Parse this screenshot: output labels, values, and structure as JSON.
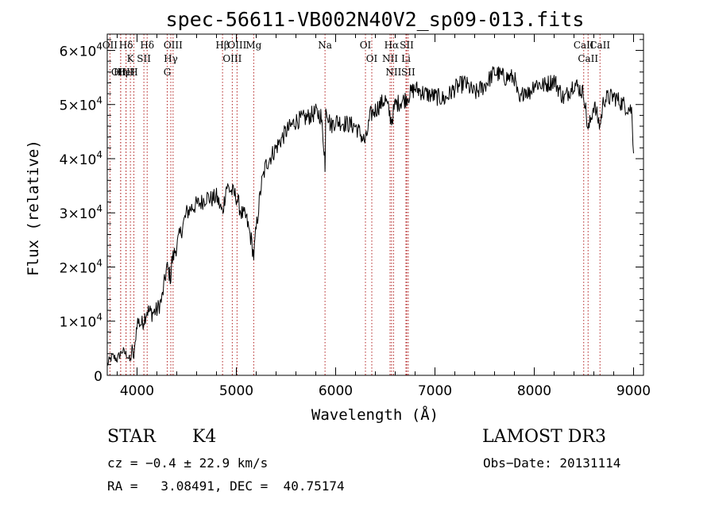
{
  "chart_data": {
    "type": "line",
    "title": "spec-56611-VB002N40V2_sp09-013.fits",
    "xlabel": "Wavelength (Å)",
    "ylabel": "Flux (relative)",
    "xlim": [
      3700,
      9100
    ],
    "ylim": [
      0,
      63000
    ],
    "xticks": [
      4000,
      5000,
      6000,
      7000,
      8000,
      9000
    ],
    "xtick_labels": [
      "4000",
      "5000",
      "6000",
      "7000",
      "8000",
      "9000"
    ],
    "yticks": [
      0,
      10000,
      20000,
      30000,
      40000,
      50000,
      60000
    ],
    "ytick_mantissas": [
      "0",
      "1×10",
      "2×10",
      "3×10",
      "4×10",
      "5×10",
      "6×10"
    ],
    "ytick_exponents": [
      "",
      "4",
      "4",
      "4",
      "4",
      "4",
      "4"
    ],
    "series": [
      {
        "name": "flux",
        "x": [
          3700,
          3750,
          3800,
          3850,
          3900,
          3933,
          3950,
          3968,
          4000,
          4050,
          4101,
          4150,
          4200,
          4250,
          4300,
          4340,
          4350,
          4400,
          4450,
          4500,
          4550,
          4600,
          4650,
          4700,
          4750,
          4800,
          4861,
          4900,
          4950,
          5000,
          5050,
          5100,
          5150,
          5175,
          5200,
          5250,
          5300,
          5400,
          5500,
          5600,
          5700,
          5800,
          5850,
          5890,
          5893,
          5900,
          5950,
          6000,
          6100,
          6200,
          6300,
          6350,
          6400,
          6500,
          6563,
          6600,
          6700,
          6800,
          6900,
          7000,
          7100,
          7200,
          7300,
          7400,
          7500,
          7600,
          7700,
          7800,
          7850,
          7900,
          7950,
          8000,
          8100,
          8200,
          8300,
          8400,
          8500,
          8542,
          8600,
          8662,
          8700,
          8800,
          8900,
          8980,
          9000
        ],
        "y": [
          2000,
          3500,
          3000,
          4500,
          3800,
          2500,
          5000,
          3000,
          10000,
          9500,
          12000,
          11500,
          12000,
          14000,
          20000,
          18000,
          21000,
          24000,
          27000,
          30000,
          31000,
          31500,
          32000,
          33000,
          32500,
          33000,
          30000,
          35000,
          34000,
          33000,
          30000,
          29000,
          25000,
          22000,
          27000,
          35000,
          39000,
          42000,
          45000,
          47000,
          47500,
          48500,
          48000,
          41000,
          37000,
          50000,
          46000,
          47000,
          46500,
          46000,
          43000,
          48000,
          49000,
          51000,
          47000,
          50000,
          51000,
          53000,
          52000,
          51500,
          51000,
          53000,
          54000,
          52000,
          53500,
          56000,
          55000,
          55000,
          50000,
          53000,
          52000,
          54000,
          53500,
          54500,
          51000,
          54000,
          52000,
          45000,
          50000,
          46000,
          51000,
          51500,
          50000,
          49000,
          41000
        ]
      }
    ],
    "lines": [
      {
        "label": "Hδ",
        "wl": 3889
      },
      {
        "label": "K",
        "wl": 3933
      },
      {
        "label": "Hδ",
        "wl": 4102
      },
      {
        "label": "OII",
        "wl": 3727
      },
      {
        "label": "HeI",
        "wl": 3889
      },
      {
        "label": "SII",
        "wl": 4069
      },
      {
        "label": "OIII",
        "wl": 3835
      },
      {
        "label": "Hη",
        "wl": 3835
      },
      {
        "label": "H",
        "wl": 3968
      },
      {
        "label": "OIII",
        "wl": 4363
      },
      {
        "label": "Hγ",
        "wl": 4340
      },
      {
        "label": "G",
        "wl": 4304
      },
      {
        "label": "Hβ",
        "wl": 4861
      },
      {
        "label": "OIII",
        "wl": 4959
      },
      {
        "label": "OIII",
        "wl": 5007
      },
      {
        "label": "Mg",
        "wl": 5175
      },
      {
        "label": "Na",
        "wl": 5893
      },
      {
        "label": "OI",
        "wl": 6300
      },
      {
        "label": "OI",
        "wl": 6364
      },
      {
        "label": "Hα",
        "wl": 6563
      },
      {
        "label": "SII",
        "wl": 6716
      },
      {
        "label": "NII",
        "wl": 6548
      },
      {
        "label": "Li",
        "wl": 6708
      },
      {
        "label": "NII",
        "wl": 6583
      },
      {
        "label": "SII",
        "wl": 6731
      },
      {
        "label": "CaII",
        "wl": 8498
      },
      {
        "label": "CaII",
        "wl": 8542
      },
      {
        "label": "CaII",
        "wl": 8662
      }
    ]
  },
  "info": {
    "object_class": "STAR",
    "subclass": "K4",
    "survey": "LAMOST DR3",
    "cz": "cz = −0.4 ± 22.9 km/s",
    "obs_date": "Obs−Date: 20131114",
    "radec": "RA =   3.08491, DEC =  40.75174"
  },
  "colors": {
    "line_marker": "#b22222",
    "spectrum": "#000000",
    "axes": "#000000"
  }
}
